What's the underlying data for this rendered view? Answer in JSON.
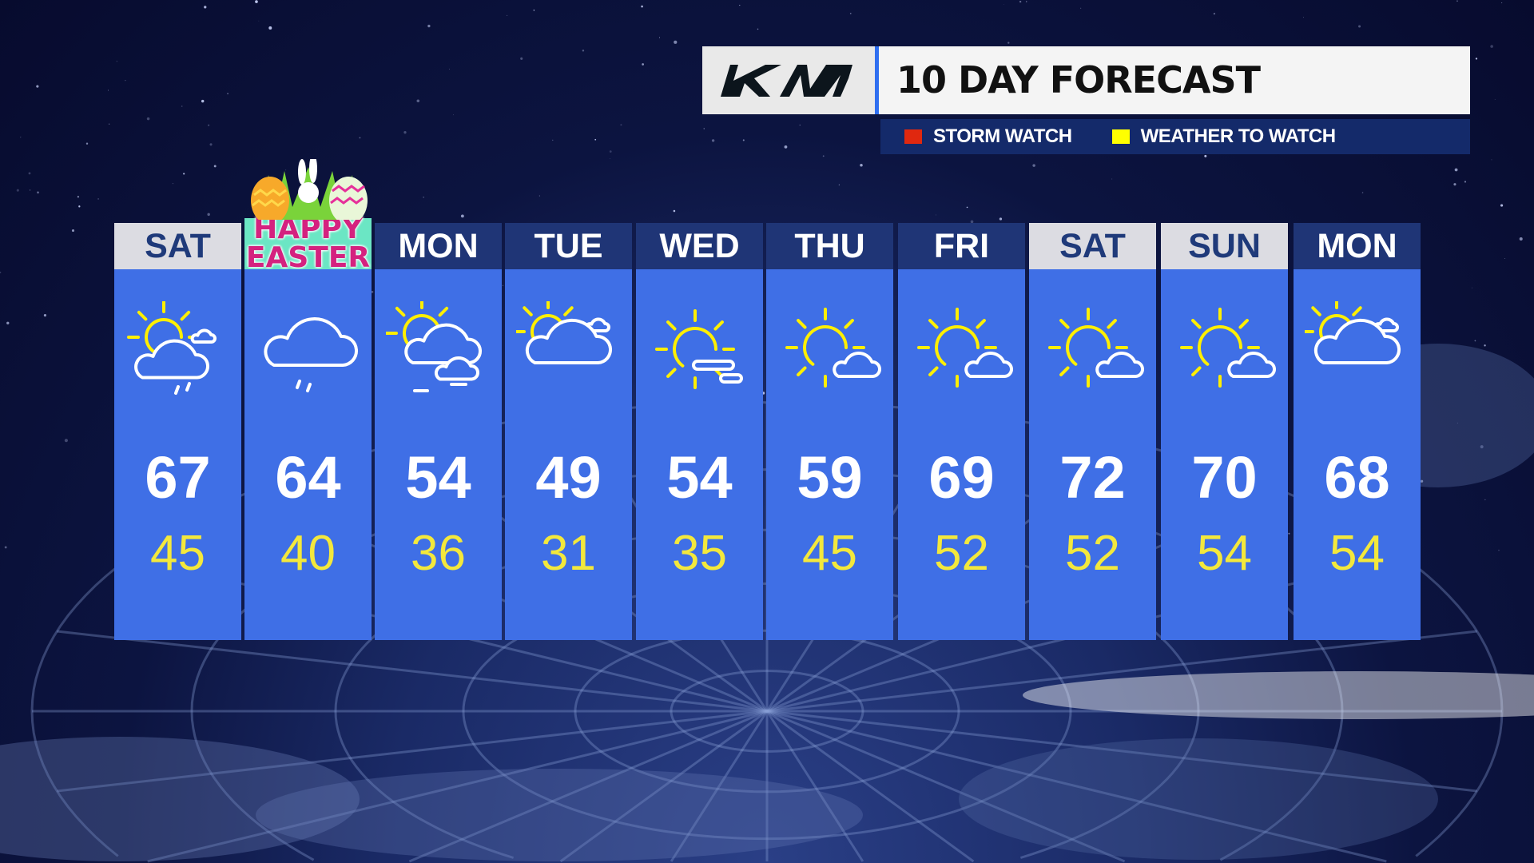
{
  "header": {
    "brand_logo": "KIA",
    "title": "10 DAY FORECAST"
  },
  "legend": [
    {
      "label": "STORM WATCH",
      "color": "#e0280f"
    },
    {
      "label": "WEATHER TO WATCH",
      "color": "#ffff00"
    }
  ],
  "colors": {
    "panel": "#3f6fe6",
    "weekday_header": "#1f3576",
    "weekend_header": "#dcdce2",
    "low_temp": "#f3e83c"
  },
  "days": [
    {
      "day": "SAT",
      "style": "weekend",
      "icon": "partly-cloudy-showers",
      "high": "67",
      "low": "45"
    },
    {
      "day": "HAPPY EASTER",
      "line1": "HAPPY",
      "line2": "EASTER",
      "style": "holiday",
      "icon": "cloudy-drizzle",
      "high": "64",
      "low": "40"
    },
    {
      "day": "MON",
      "style": "weekday",
      "icon": "partly-cloudy-fog",
      "high": "54",
      "low": "36"
    },
    {
      "day": "TUE",
      "style": "weekday",
      "icon": "partly-cloudy",
      "high": "49",
      "low": "31"
    },
    {
      "day": "WED",
      "style": "weekday",
      "icon": "sunny-haze",
      "high": "54",
      "low": "35"
    },
    {
      "day": "THU",
      "style": "weekday",
      "icon": "mostly-sunny",
      "high": "59",
      "low": "45"
    },
    {
      "day": "FRI",
      "style": "weekday",
      "icon": "mostly-sunny",
      "high": "69",
      "low": "52"
    },
    {
      "day": "SAT",
      "style": "weekend",
      "icon": "mostly-sunny",
      "high": "72",
      "low": "52"
    },
    {
      "day": "SUN",
      "style": "weekend",
      "icon": "mostly-sunny",
      "high": "70",
      "low": "54"
    },
    {
      "day": "MON",
      "style": "weekday",
      "icon": "partly-cloudy",
      "high": "68",
      "low": "54"
    }
  ]
}
